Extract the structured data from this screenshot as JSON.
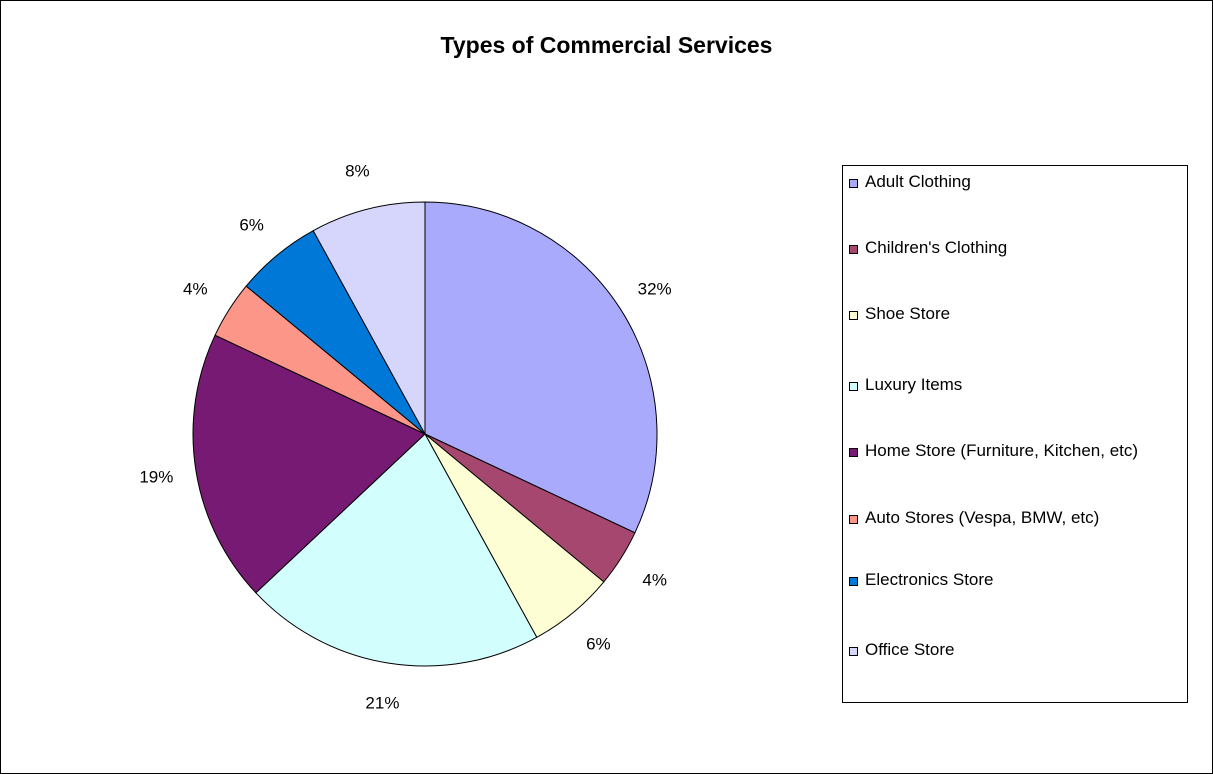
{
  "chart_data": {
    "type": "pie",
    "title": "Types of Commercial Services",
    "slices": [
      {
        "label": "Adult Clothing",
        "value": 32,
        "display": "32%",
        "color": "#A9AAFC"
      },
      {
        "label": "Children's Clothing",
        "value": 4,
        "display": "4%",
        "color": "#A5476F"
      },
      {
        "label": "Shoe Store",
        "value": 6,
        "display": "6%",
        "color": "#FEFED5"
      },
      {
        "label": "Luxury Items",
        "value": 21,
        "display": "21%",
        "color": "#D2FEFE"
      },
      {
        "label": "Home Store (Furniture, Kitchen, etc)",
        "value": 19,
        "display": "19%",
        "color": "#771A73"
      },
      {
        "label": "Auto Stores (Vespa, BMW, etc)",
        "value": 4,
        "display": "4%",
        "color": "#FC9689"
      },
      {
        "label": "Electronics Store",
        "value": 6,
        "display": "6%",
        "color": "#0078D7"
      },
      {
        "label": "Office Store",
        "value": 8,
        "display": "8%",
        "color": "#D6D6FC"
      }
    ],
    "legend_position": "right"
  }
}
